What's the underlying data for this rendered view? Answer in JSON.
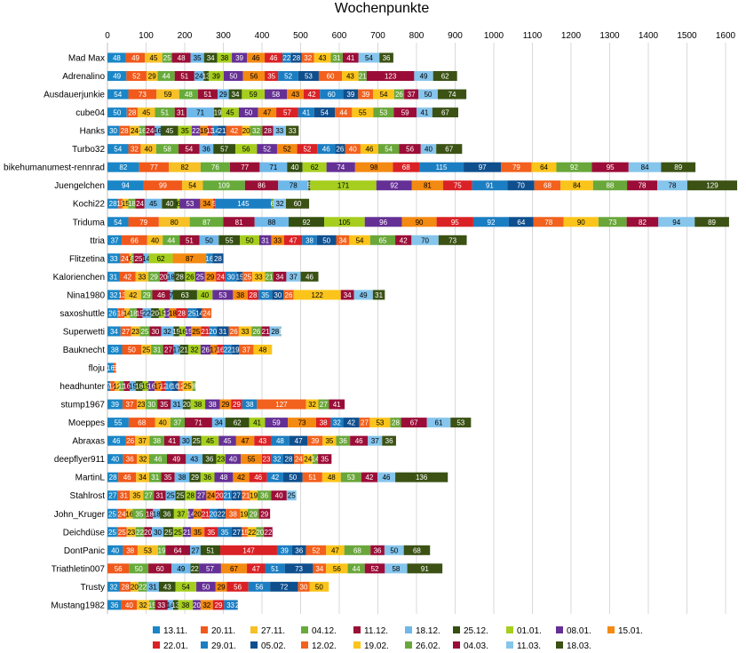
{
  "chart_data": {
    "type": "bar",
    "orientation": "horizontal",
    "stacked": true,
    "title": "Wochenpunkte",
    "xlim": [
      0,
      1600
    ],
    "x_ticks": [
      0,
      100,
      200,
      300,
      400,
      500,
      600,
      700,
      800,
      900,
      1000,
      1100,
      1200,
      1300,
      1400,
      1500,
      1600
    ],
    "grid": true,
    "legend_position": "bottom",
    "series": [
      {
        "name": "13.11.",
        "color": "#1a86c7"
      },
      {
        "name": "20.11.",
        "color": "#f0591b"
      },
      {
        "name": "27.11.",
        "color": "#f6c026"
      },
      {
        "name": "04.12.",
        "color": "#67ab3b"
      },
      {
        "name": "11.12.",
        "color": "#9a0f35"
      },
      {
        "name": "18.12.",
        "color": "#6fb8ea"
      },
      {
        "name": "25.12.",
        "color": "#354f12"
      },
      {
        "name": "01.01.",
        "color": "#a6ce1f"
      },
      {
        "name": "08.01.",
        "color": "#653095"
      },
      {
        "name": "15.01.",
        "color": "#f38a11"
      },
      {
        "name": "22.01.",
        "color": "#da2226"
      },
      {
        "name": "29.01.",
        "color": "#1b7ec2"
      },
      {
        "name": "05.02.",
        "color": "#0f4f8e"
      },
      {
        "name": "12.02.",
        "color": "#f2611d"
      },
      {
        "name": "19.02.",
        "color": "#fbc41b"
      },
      {
        "name": "26.02.",
        "color": "#6aa73b"
      },
      {
        "name": "04.03.",
        "color": "#9b0d38"
      },
      {
        "name": "11.03.",
        "color": "#86c5ec"
      },
      {
        "name": "18.03.",
        "color": "#3b5214"
      }
    ],
    "rows": [
      {
        "name": "Mad Max",
        "values": [
          48,
          49,
          45,
          25,
          48,
          35,
          34,
          38,
          39,
          46,
          46,
          22,
          28,
          32,
          43,
          31,
          41,
          54,
          36
        ]
      },
      {
        "name": "Adrenalino",
        "values": [
          49,
          52,
          29,
          44,
          51,
          24,
          13,
          39,
          50,
          56,
          35,
          52,
          53,
          60,
          43,
          21,
          123,
          49,
          62
        ]
      },
      {
        "name": "Ausdauerjunkie",
        "values": [
          54,
          73,
          59,
          48,
          51,
          29,
          34,
          59,
          58,
          43,
          42,
          60,
          39,
          39,
          54,
          26,
          37,
          50,
          74
        ]
      },
      {
        "name": "cube04",
        "values": [
          50,
          28,
          45,
          51,
          31,
          71,
          19,
          45,
          50,
          47,
          57,
          41,
          54,
          44,
          55,
          53,
          59,
          41,
          67
        ]
      },
      {
        "name": "Hanks",
        "values": [
          30,
          28,
          24,
          16,
          24,
          16,
          45,
          35,
          22,
          19,
          13,
          14,
          21,
          42,
          20,
          32,
          28,
          33,
          33
        ]
      },
      {
        "name": "Turbo32",
        "values": [
          54,
          32,
          40,
          58,
          54,
          36,
          57,
          56,
          52,
          52,
          52,
          46,
          26,
          40,
          46,
          54,
          56,
          40,
          67
        ]
      },
      {
        "name": "bikehumanumest-rennrad",
        "values": [
          82,
          77,
          82,
          76,
          77,
          71,
          40,
          62,
          74,
          98,
          68,
          115,
          97,
          79,
          64,
          92,
          95,
          84,
          89
        ]
      },
      {
        "name": "Juengelchen",
        "values": [
          94,
          99,
          54,
          109,
          86,
          78,
          5,
          171,
          92,
          81,
          75,
          91,
          70,
          68,
          84,
          88,
          78,
          78,
          129
        ]
      },
      {
        "name": "Kochi22",
        "values": [
          28,
          11,
          15,
          18,
          24,
          45,
          40,
          6,
          53,
          34,
          5,
          145,
          0,
          0,
          0,
          6,
          0,
          32,
          60
        ]
      },
      {
        "name": "Triduma",
        "values": [
          54,
          79,
          80,
          87,
          81,
          88,
          92,
          105,
          96,
          90,
          95,
          92,
          64,
          78,
          90,
          73,
          82,
          94,
          89
        ]
      },
      {
        "name": "ttria",
        "values": [
          37,
          66,
          40,
          44,
          51,
          50,
          55,
          50,
          31,
          33,
          47,
          38,
          50,
          34,
          54,
          65,
          42,
          70,
          73
        ]
      },
      {
        "name": "Flitzetina",
        "values": [
          33,
          24,
          6,
          5,
          25,
          14,
          0,
          62,
          0,
          87,
          0,
          16,
          28,
          0,
          0,
          0,
          0,
          0,
          0
        ]
      },
      {
        "name": "Kalorienchen",
        "values": [
          31,
          42,
          33,
          29,
          20,
          18,
          28,
          26,
          25,
          29,
          24,
          30,
          15,
          25,
          33,
          21,
          34,
          37,
          46
        ]
      },
      {
        "name": "Nina1980",
        "values": [
          32,
          13,
          42,
          29,
          46,
          7,
          63,
          40,
          53,
          38,
          28,
          35,
          30,
          26,
          122,
          0,
          34,
          49,
          31
        ]
      },
      {
        "name": "saxoshuttle",
        "values": [
          26,
          18,
          14,
          18,
          15,
          22,
          20,
          15,
          12,
          18,
          28,
          25,
          14,
          24,
          0,
          0,
          0,
          0,
          0
        ]
      },
      {
        "name": "Superwetti",
        "values": [
          34,
          27,
          23,
          25,
          30,
          32,
          15,
          16,
          15,
          25,
          21,
          20,
          31,
          26,
          33,
          26,
          21,
          28,
          1
        ]
      },
      {
        "name": "Bauknecht",
        "values": [
          38,
          50,
          25,
          31,
          27,
          17,
          21,
          32,
          26,
          17,
          16,
          22,
          19,
          37,
          48,
          0,
          0,
          0,
          0
        ]
      },
      {
        "name": "floju",
        "values": [
          16,
          6,
          0,
          0,
          0,
          0,
          0,
          0,
          0,
          0,
          0,
          0,
          0,
          0,
          0,
          0,
          0,
          0,
          0
        ]
      },
      {
        "name": "headhunter",
        "values": [
          7,
          12,
          12,
          11,
          16,
          15,
          18,
          15,
          16,
          17,
          12,
          16,
          16,
          12,
          25,
          8,
          0,
          0,
          0
        ]
      },
      {
        "name": "stump1967",
        "values": [
          39,
          37,
          23,
          30,
          35,
          31,
          20,
          38,
          38,
          29,
          29,
          38,
          0,
          127,
          32,
          27,
          41,
          0,
          0
        ]
      },
      {
        "name": "Moeppes",
        "values": [
          55,
          68,
          40,
          37,
          71,
          34,
          62,
          41,
          59,
          73,
          38,
          32,
          42,
          27,
          53,
          28,
          67,
          61,
          53
        ]
      },
      {
        "name": "Abraxas",
        "values": [
          46,
          26,
          37,
          38,
          41,
          30,
          25,
          45,
          45,
          47,
          43,
          48,
          47,
          39,
          35,
          36,
          46,
          37,
          36
        ]
      },
      {
        "name": "deepflyer911",
        "values": [
          40,
          36,
          32,
          46,
          49,
          43,
          36,
          23,
          40,
          55,
          23,
          32,
          28,
          24,
          24,
          14,
          35,
          0,
          0
        ]
      },
      {
        "name": "MartinL",
        "values": [
          28,
          46,
          34,
          31,
          35,
          38,
          29,
          36,
          48,
          42,
          46,
          42,
          50,
          51,
          48,
          53,
          42,
          46,
          136
        ]
      },
      {
        "name": "Stahlrost",
        "values": [
          27,
          31,
          35,
          27,
          31,
          25,
          25,
          28,
          27,
          24,
          20,
          21,
          27,
          21,
          19,
          36,
          40,
          25,
          0
        ]
      },
      {
        "name": "John_Kruger",
        "values": [
          25,
          24,
          16,
          35,
          18,
          18,
          36,
          37,
          14,
          20,
          21,
          20,
          22,
          38,
          19,
          29,
          29,
          0,
          0
        ]
      },
      {
        "name": "Deichdüse",
        "values": [
          25,
          25,
          23,
          22,
          20,
          30,
          25,
          25,
          21,
          35,
          35,
          35,
          27,
          15,
          22,
          20,
          22,
          0,
          0
        ]
      },
      {
        "name": "DontPanic",
        "values": [
          40,
          38,
          53,
          19,
          64,
          27,
          51,
          0,
          0,
          0,
          147,
          39,
          36,
          52,
          47,
          68,
          36,
          50,
          68
        ]
      },
      {
        "name": "Triathletin007",
        "values": [
          0,
          56,
          0,
          50,
          60,
          49,
          22,
          0,
          57,
          67,
          47,
          51,
          73,
          34,
          56,
          44,
          52,
          58,
          91
        ]
      },
      {
        "name": "Trusty",
        "values": [
          32,
          28,
          20,
          22,
          0,
          31,
          43,
          54,
          50,
          29,
          56,
          56,
          72,
          30,
          50,
          0,
          0,
          0,
          0
        ]
      },
      {
        "name": "Mustang1982",
        "values": [
          36,
          40,
          32,
          15,
          33,
          14,
          13,
          38,
          20,
          32,
          29,
          33,
          2,
          0,
          0,
          0,
          0,
          0,
          0
        ]
      }
    ]
  }
}
